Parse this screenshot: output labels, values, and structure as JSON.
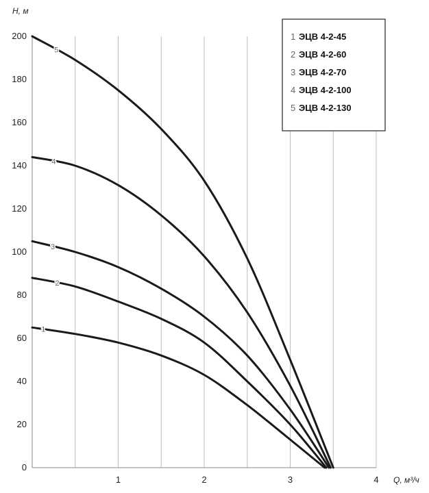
{
  "chart_data": {
    "type": "line",
    "title": "",
    "xlabel": "Q, м³/ч",
    "ylabel": "Н, м",
    "xlim": [
      0,
      4
    ],
    "ylim": [
      0,
      200
    ],
    "x_ticks": [
      "1",
      "2",
      "3",
      "4"
    ],
    "y_ticks": [
      "0",
      "20",
      "40",
      "60",
      "80",
      "100",
      "120",
      "140",
      "160",
      "180",
      "200"
    ],
    "grid": "vertical",
    "legend_position": "top-right",
    "series": [
      {
        "name": "ЭЦВ 4-2-45",
        "number": "1",
        "x": [
          0,
          0.5,
          1,
          1.5,
          2,
          2.5,
          3,
          3.4
        ],
        "y": [
          65,
          62,
          58,
          52,
          43,
          29,
          13,
          0
        ]
      },
      {
        "name": "ЭЦВ 4-2-60",
        "number": "2",
        "x": [
          0,
          0.5,
          1,
          1.5,
          2,
          2.5,
          3,
          3.42
        ],
        "y": [
          88,
          84,
          77,
          69,
          58,
          40,
          20,
          0
        ]
      },
      {
        "name": "ЭЦВ 4-2-70",
        "number": "3",
        "x": [
          0,
          0.5,
          1,
          1.5,
          2,
          2.5,
          3,
          3.45
        ],
        "y": [
          105,
          100,
          93,
          83,
          70,
          52,
          27,
          0
        ]
      },
      {
        "name": "ЭЦВ 4-2-100",
        "number": "4",
        "x": [
          0,
          0.5,
          1,
          1.5,
          2,
          2.5,
          3,
          3.47
        ],
        "y": [
          144,
          140,
          131,
          117,
          98,
          72,
          38,
          0
        ]
      },
      {
        "name": "ЭЦВ 4-2-130",
        "number": "5",
        "x": [
          0,
          0.5,
          1,
          1.5,
          2,
          2.5,
          3,
          3.5
        ],
        "y": [
          200,
          189,
          175,
          157,
          133,
          97,
          50,
          0
        ]
      }
    ]
  }
}
